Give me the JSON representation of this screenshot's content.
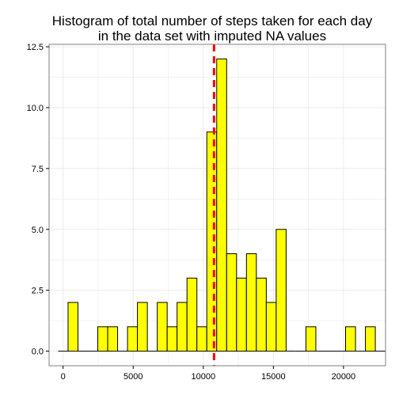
{
  "chart_data": {
    "type": "bar",
    "title_lines": [
      "Histogram of total number of steps taken for each day",
      "in the data set with imputed NA values"
    ],
    "xlabel": "",
    "ylabel": "",
    "xlim": [
      -1000,
      23000
    ],
    "ylim": [
      -0.6,
      12.6
    ],
    "x_ticks": [
      0,
      5000,
      10000,
      15000,
      20000
    ],
    "x_tick_labels": [
      "0",
      "5000",
      "10000",
      "15000",
      "20000"
    ],
    "y_ticks": [
      0,
      2.5,
      5,
      7.5,
      10,
      12.5
    ],
    "y_tick_labels": [
      "0.0",
      "2.5",
      "5.0",
      "7.5",
      "10.0",
      "12.5"
    ],
    "bin_width": 707,
    "bins": [
      {
        "x_start": -354,
        "count": 0
      },
      {
        "x_start": 353,
        "count": 2
      },
      {
        "x_start": 1060,
        "count": 0
      },
      {
        "x_start": 1767,
        "count": 0
      },
      {
        "x_start": 2474,
        "count": 1
      },
      {
        "x_start": 3181,
        "count": 1
      },
      {
        "x_start": 3888,
        "count": 0
      },
      {
        "x_start": 4595,
        "count": 1
      },
      {
        "x_start": 5302,
        "count": 2
      },
      {
        "x_start": 6009,
        "count": 0
      },
      {
        "x_start": 6716,
        "count": 2
      },
      {
        "x_start": 7423,
        "count": 1
      },
      {
        "x_start": 8130,
        "count": 2
      },
      {
        "x_start": 8837,
        "count": 3
      },
      {
        "x_start": 9544,
        "count": 1
      },
      {
        "x_start": 10251,
        "count": 9
      },
      {
        "x_start": 10958,
        "count": 12
      },
      {
        "x_start": 11665,
        "count": 4
      },
      {
        "x_start": 12372,
        "count": 3
      },
      {
        "x_start": 13079,
        "count": 4
      },
      {
        "x_start": 13786,
        "count": 3
      },
      {
        "x_start": 14493,
        "count": 2
      },
      {
        "x_start": 15200,
        "count": 5
      },
      {
        "x_start": 15907,
        "count": 0
      },
      {
        "x_start": 16614,
        "count": 0
      },
      {
        "x_start": 17321,
        "count": 1
      },
      {
        "x_start": 18028,
        "count": 0
      },
      {
        "x_start": 18735,
        "count": 0
      },
      {
        "x_start": 19442,
        "count": 0
      },
      {
        "x_start": 20149,
        "count": 1
      },
      {
        "x_start": 20856,
        "count": 0
      },
      {
        "x_start": 21563,
        "count": 1
      },
      {
        "x_start": 22270,
        "count": 0
      }
    ],
    "reference_line": {
      "x": 10766,
      "color": "#ff0000",
      "style": "dashed"
    },
    "bar_fill": "#ffff00",
    "bar_stroke": "#000000",
    "grid": true,
    "grid_color": "#ebebeb",
    "panel_border_color": "#7f7f7f",
    "legend": "none"
  }
}
